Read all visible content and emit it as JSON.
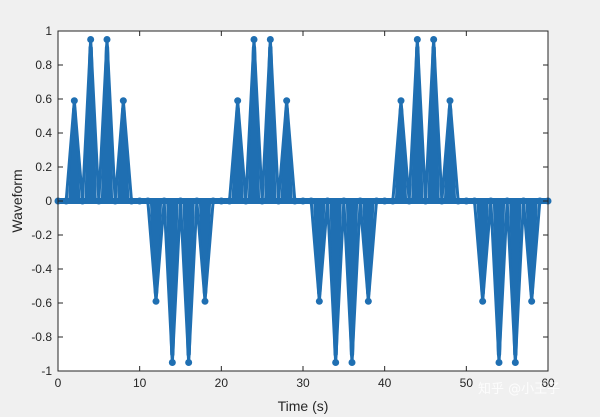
{
  "chart_data": {
    "type": "line",
    "title": "",
    "xlabel": "Time (s)",
    "ylabel": "Waveform",
    "xlim": [
      0,
      60
    ],
    "ylim": [
      -1,
      1
    ],
    "x_ticks": [
      0,
      10,
      20,
      30,
      40,
      50,
      60
    ],
    "x_tick_labels": [
      "0",
      "10",
      "20",
      "30",
      "40",
      "50",
      "60"
    ],
    "y_ticks": [
      -1,
      -0.8,
      -0.6,
      -0.4,
      -0.2,
      0,
      0.2,
      0.4,
      0.6,
      0.8,
      1
    ],
    "y_tick_labels": [
      "-1",
      "-0.8",
      "-0.6",
      "-0.4",
      "-0.2",
      "0",
      "0.2",
      "0.4",
      "0.6",
      "0.8",
      "1"
    ],
    "grid": false,
    "line_color": "#1f6fb2",
    "series": [
      {
        "x": [
          0,
          1,
          2,
          3,
          4,
          5,
          6,
          7,
          8,
          9,
          10,
          11,
          12,
          13,
          14,
          15,
          16,
          17,
          18,
          19,
          20,
          21,
          22,
          23,
          24,
          25,
          26,
          27,
          28,
          29,
          30,
          31,
          32,
          33,
          34,
          35,
          36,
          37,
          38,
          39,
          40,
          41,
          42,
          43,
          44,
          45,
          46,
          47,
          48,
          49,
          50,
          51,
          52,
          53,
          54,
          55,
          56,
          57,
          58,
          59,
          60
        ],
        "y": [
          0,
          0,
          0.59,
          0,
          0.95,
          0,
          0.95,
          0,
          0.59,
          0,
          0,
          0,
          -0.59,
          0,
          -0.95,
          0,
          -0.95,
          0,
          -0.59,
          0,
          0,
          0,
          0.59,
          0,
          0.95,
          0,
          0.95,
          0,
          0.59,
          0,
          0,
          0,
          -0.59,
          0,
          -0.95,
          0,
          -0.95,
          0,
          -0.59,
          0,
          0,
          0,
          0.59,
          0,
          0.95,
          0,
          0.95,
          0,
          0.59,
          0,
          0,
          0,
          -0.59,
          0,
          -0.95,
          0,
          -0.95,
          0,
          -0.59,
          0,
          0
        ]
      }
    ]
  },
  "watermark": "知乎 @小王子"
}
